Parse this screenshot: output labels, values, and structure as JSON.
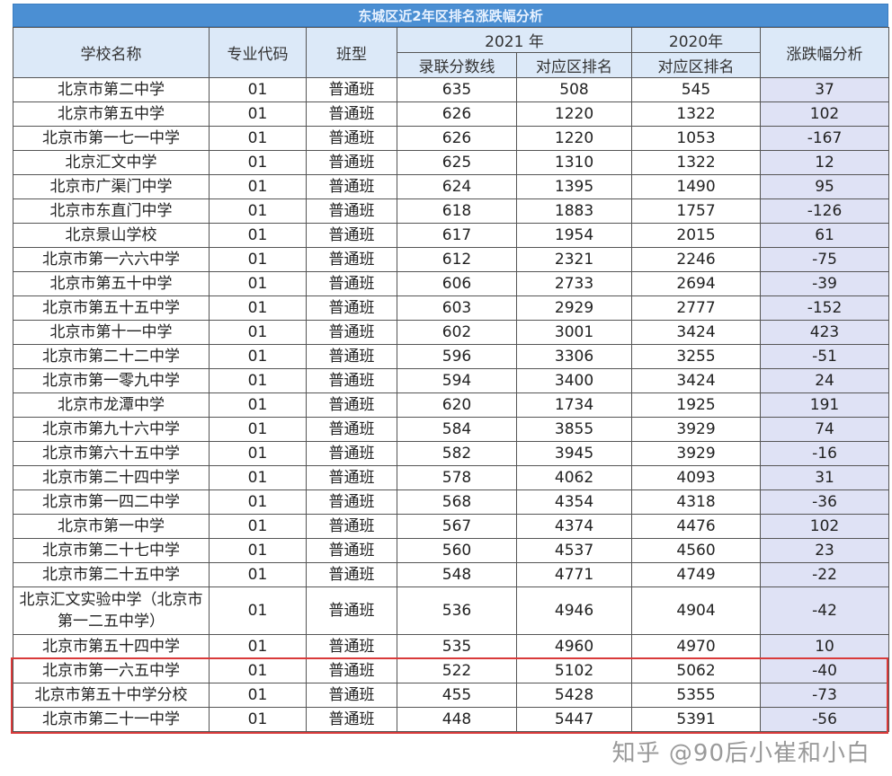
{
  "title": "东城区近2年区排名涨跌幅分析",
  "headers": {
    "school": "学校名称",
    "code": "专业代码",
    "class_type": "班型",
    "y2021": "2021 年",
    "y2020": "2020年",
    "score": "录联分数线",
    "rank2021": "对应区排名",
    "rank2020": "对应区排名",
    "change": "涨跌幅分析"
  },
  "rows": [
    [
      "北京市第二中学",
      "01",
      "普通班",
      "635",
      "508",
      "545",
      "37"
    ],
    [
      "北京市第五中学",
      "01",
      "普通班",
      "626",
      "1220",
      "1322",
      "102"
    ],
    [
      "北京市第一七一中学",
      "01",
      "普通班",
      "626",
      "1220",
      "1053",
      "-167"
    ],
    [
      "北京汇文中学",
      "01",
      "普通班",
      "625",
      "1310",
      "1322",
      "12"
    ],
    [
      "北京市广渠门中学",
      "01",
      "普通班",
      "624",
      "1395",
      "1490",
      "95"
    ],
    [
      "北京市东直门中学",
      "01",
      "普通班",
      "618",
      "1883",
      "1757",
      "-126"
    ],
    [
      "北京景山学校",
      "01",
      "普通班",
      "617",
      "1954",
      "2015",
      "61"
    ],
    [
      "北京市第一六六中学",
      "01",
      "普通班",
      "612",
      "2321",
      "2246",
      "-75"
    ],
    [
      "北京市第五十中学",
      "01",
      "普通班",
      "606",
      "2733",
      "2694",
      "-39"
    ],
    [
      "北京市第五十五中学",
      "01",
      "普通班",
      "603",
      "2929",
      "2777",
      "-152"
    ],
    [
      "北京市第十一中学",
      "01",
      "普通班",
      "602",
      "3001",
      "3424",
      "423"
    ],
    [
      "北京市第二十二中学",
      "01",
      "普通班",
      "596",
      "3306",
      "3255",
      "-51"
    ],
    [
      "北京市第一零九中学",
      "01",
      "普通班",
      "594",
      "3400",
      "3424",
      "24"
    ],
    [
      "北京市龙潭中学",
      "01",
      "普通班",
      "620",
      "1734",
      "1925",
      "191"
    ],
    [
      "北京市第九十六中学",
      "01",
      "普通班",
      "584",
      "3855",
      "3929",
      "74"
    ],
    [
      "北京市第六十五中学",
      "01",
      "普通班",
      "582",
      "3945",
      "3929",
      "-16"
    ],
    [
      "北京市第二十四中学",
      "01",
      "普通班",
      "578",
      "4062",
      "4093",
      "31"
    ],
    [
      "北京市第一四二中学",
      "01",
      "普通班",
      "568",
      "4354",
      "4318",
      "-36"
    ],
    [
      "北京市第一中学",
      "01",
      "普通班",
      "567",
      "4374",
      "4476",
      "102"
    ],
    [
      "北京市第二十七中学",
      "01",
      "普通班",
      "560",
      "4537",
      "4560",
      "23"
    ],
    [
      "北京市第二十五中学",
      "01",
      "普通班",
      "548",
      "4771",
      "4749",
      "-22"
    ],
    [
      "北京汇文实验中学（北京市第一二五中学）",
      "01",
      "普通班",
      "536",
      "4946",
      "4904",
      "-42"
    ],
    [
      "北京市第五十四中学",
      "01",
      "普通班",
      "535",
      "4960",
      "4970",
      "10"
    ],
    [
      "北京市第一六五中学",
      "01",
      "普通班",
      "522",
      "5102",
      "5062",
      "-40"
    ],
    [
      "北京市第五十中学分校",
      "01",
      "普通班",
      "455",
      "5428",
      "5355",
      "-73"
    ],
    [
      "北京市第二十一中学",
      "01",
      "普通班",
      "448",
      "5447",
      "5391",
      "-56"
    ]
  ],
  "watermark": "知乎 @90后小崔和小白",
  "colors": {
    "title_bar": "#4b8fd3",
    "header_bg": "#dce9f8",
    "change_col_bg": "#dfe2f5",
    "highlight_box": "#d93a3a"
  }
}
